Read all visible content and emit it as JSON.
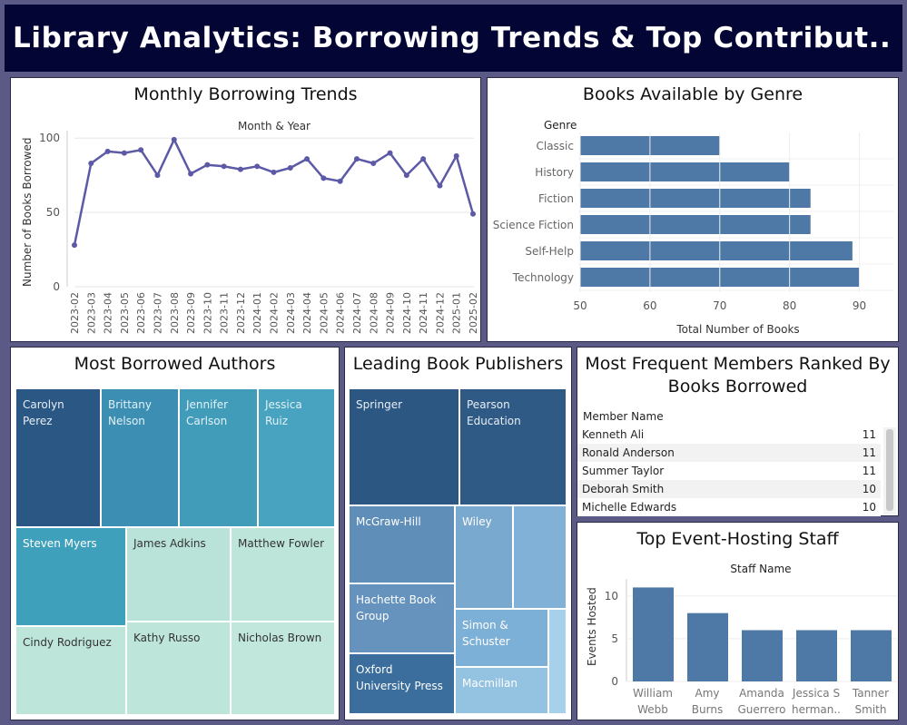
{
  "title": "Library Analytics: Borrowing Trends & Top Contribut..",
  "colors": {
    "line": "#5c5aa6",
    "bar": "#4e79a7"
  },
  "borrowing": {
    "title": "Monthly Borrowing Trends",
    "chart_data": {
      "type": "line",
      "title": "Monthly Borrowing Trends",
      "xlabel": "Month & Year",
      "ylabel": "Number of Books Borrowed",
      "x": [
        "2023-02",
        "2023-03",
        "2023-04",
        "2023-05",
        "2023-06",
        "2023-07",
        "2023-08",
        "2023-09",
        "2023-10",
        "2023-11",
        "2023-12",
        "2024-01",
        "2024-02",
        "2024-03",
        "2024-04",
        "2024-05",
        "2024-06",
        "2024-07",
        "2024-08",
        "2024-09",
        "2024-10",
        "2024-11",
        "2024-12",
        "2025-01",
        "2025-02"
      ],
      "values": [
        28,
        83,
        91,
        90,
        92,
        75,
        99,
        76,
        82,
        81,
        79,
        81,
        77,
        80,
        86,
        73,
        71,
        86,
        83,
        90,
        75,
        86,
        68,
        88,
        49
      ],
      "yticks": [
        0,
        50,
        100
      ],
      "ylim": [
        0,
        105
      ]
    }
  },
  "genre": {
    "title": "Books Available by Genre",
    "chart_data": {
      "type": "bar",
      "orientation": "horizontal",
      "title": "Books Available by Genre",
      "ylabel": "Genre",
      "xlabel": "Total Number of Books",
      "categories": [
        "Classic",
        "History",
        "Fiction",
        "Science Fiction",
        "Self-Help",
        "Technology"
      ],
      "values": [
        70,
        80,
        83,
        83,
        89,
        90
      ],
      "xticks": [
        50,
        60,
        70,
        80,
        90
      ],
      "xlim": [
        50,
        95
      ]
    }
  },
  "authors": {
    "title": "Most Borrowed Authors",
    "chart_data": {
      "type": "treemap",
      "title": "Most Borrowed Authors",
      "categories": [
        "Carolyn Perez",
        "Brittany Nelson",
        "Jennifer Carlson",
        "Jessica Ruiz",
        "Steven Myers",
        "James Adkins",
        "Matthew Fowler",
        "Cindy Rodriguez",
        "Kathy Russo",
        "Nicholas Brown"
      ]
    }
  },
  "publishers": {
    "title": "Leading Book Publishers",
    "chart_data": {
      "type": "treemap",
      "title": "Leading Book Publishers",
      "categories": [
        "Springer",
        "Pearson Education",
        "McGraw-Hill",
        "Wiley",
        "Hachette Book Group",
        "Simon & Schuster",
        "Oxford University Press",
        "Macmillan"
      ]
    }
  },
  "members": {
    "title": "Most Frequent Members Ranked By Books Borrowed",
    "column_header": "Member Name",
    "chart_data": {
      "type": "table",
      "title": "Most Frequent Members Ranked By Books Borrowed",
      "categories": [
        "Kenneth Ali",
        "Ronald Anderson",
        "Summer Taylor",
        "Deborah Smith",
        "Michelle Edwards"
      ],
      "values": [
        11,
        11,
        11,
        10,
        10
      ]
    }
  },
  "staff": {
    "title": "Top Event-Hosting Staff",
    "chart_data": {
      "type": "bar",
      "title": "Top Event-Hosting Staff",
      "xlabel": "Staff Name",
      "ylabel": "Events Hosted",
      "categories": [
        "William Webb",
        "Amy Burns",
        "Amanda Guerrero",
        "Jessica Sherman..",
        "Tanner Smith"
      ],
      "category_lines": [
        [
          "William",
          "Webb"
        ],
        [
          "Amy",
          "Burns"
        ],
        [
          "Amanda",
          "Guerrero"
        ],
        [
          "Jessica S",
          "herman.."
        ],
        [
          "Tanner",
          "Smith"
        ]
      ],
      "values": [
        11,
        8,
        6,
        6,
        6
      ],
      "yticks": [
        0,
        5,
        10
      ],
      "ylim": [
        0,
        12
      ]
    }
  }
}
